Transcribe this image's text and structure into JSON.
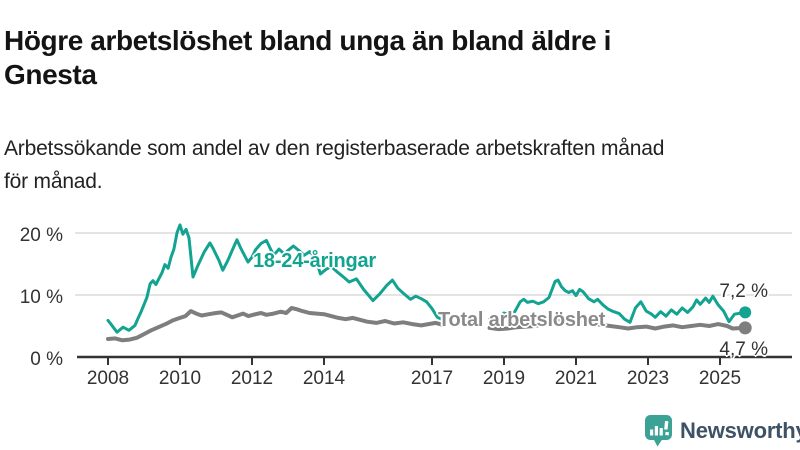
{
  "header": {
    "title": "Högre arbetslöshet bland unga än bland äldre i\nGnesta",
    "subtitle": "Arbetssökande som andel av den registerbaserade arbetskraften månad\nför månad."
  },
  "chart_data": {
    "type": "line",
    "title": "Högre arbetslöshet bland unga än bland äldre i Gnesta",
    "xlabel": "",
    "ylabel": "",
    "unit": "%",
    "ylim": [
      0,
      22
    ],
    "x_range_years": [
      2008,
      2025.8
    ],
    "grid": "horizontal-only",
    "legend_position": "inline-labels-on-lines",
    "note": "gap in both series between 2017 and mid-2018",
    "y_ticks": {
      "labels": [
        "0 %",
        "10 %",
        "20 %"
      ],
      "values": [
        0,
        10,
        20
      ]
    },
    "x_ticks": {
      "labels": [
        "2008",
        "2010",
        "2012",
        "2014",
        "2017",
        "2019",
        "2021",
        "2023",
        "2025"
      ],
      "years": [
        2008,
        2010,
        2012,
        2014,
        2017,
        2019,
        2021,
        2023,
        2025
      ]
    },
    "series": [
      {
        "name": "18-24-åringar",
        "color": "#12A391",
        "end_label": "7,2 %",
        "end_value": 7.2,
        "segments": [
          [
            [
              2008.0,
              5.9
            ],
            [
              2008.08,
              5.3
            ],
            [
              2008.25,
              4.0
            ],
            [
              2008.42,
              4.8
            ],
            [
              2008.58,
              4.3
            ],
            [
              2008.75,
              5.1
            ],
            [
              2008.83,
              6.2
            ],
            [
              2008.92,
              7.3
            ],
            [
              2009.08,
              9.6
            ],
            [
              2009.17,
              11.8
            ],
            [
              2009.25,
              12.3
            ],
            [
              2009.33,
              11.7
            ],
            [
              2009.5,
              13.6
            ],
            [
              2009.58,
              14.9
            ],
            [
              2009.67,
              14.3
            ],
            [
              2009.75,
              16.1
            ],
            [
              2009.83,
              17.4
            ],
            [
              2009.92,
              20.1
            ],
            [
              2010.0,
              21.3
            ],
            [
              2010.08,
              19.8
            ],
            [
              2010.17,
              20.6
            ],
            [
              2010.25,
              19.2
            ],
            [
              2010.36,
              12.9
            ],
            [
              2010.5,
              14.8
            ],
            [
              2010.67,
              16.9
            ],
            [
              2010.83,
              18.4
            ],
            [
              2010.92,
              17.5
            ],
            [
              2011.08,
              15.6
            ],
            [
              2011.19,
              14.0
            ],
            [
              2011.33,
              15.6
            ],
            [
              2011.45,
              17.2
            ],
            [
              2011.58,
              18.9
            ],
            [
              2011.7,
              17.4
            ],
            [
              2011.89,
              15.3
            ],
            [
              2012.0,
              16.1
            ],
            [
              2012.1,
              17.3
            ],
            [
              2012.25,
              18.3
            ],
            [
              2012.4,
              18.8
            ],
            [
              2012.5,
              17.6
            ],
            [
              2012.6,
              16.4
            ],
            [
              2012.75,
              17.4
            ],
            [
              2012.9,
              16.6
            ],
            [
              2013.0,
              17.2
            ],
            [
              2013.15,
              17.9
            ],
            [
              2013.3,
              17.2
            ],
            [
              2013.45,
              16.4
            ],
            [
              2013.6,
              17.0
            ],
            [
              2013.75,
              16.2
            ],
            [
              2013.9,
              13.4
            ],
            [
              2014.05,
              14.1
            ],
            [
              2014.2,
              14.6
            ],
            [
              2014.35,
              13.8
            ],
            [
              2014.5,
              13.1
            ],
            [
              2014.7,
              12.1
            ],
            [
              2014.9,
              12.6
            ],
            [
              2015.1,
              10.9
            ],
            [
              2015.36,
              9.1
            ],
            [
              2015.55,
              10.2
            ],
            [
              2015.75,
              11.6
            ],
            [
              2015.9,
              12.4
            ],
            [
              2016.05,
              11.1
            ],
            [
              2016.2,
              10.3
            ],
            [
              2016.4,
              9.3
            ],
            [
              2016.55,
              9.8
            ],
            [
              2016.7,
              9.4
            ],
            [
              2016.85,
              8.9
            ],
            [
              2017.0,
              7.8
            ],
            [
              2017.15,
              6.4
            ],
            [
              2017.3,
              6.0
            ]
          ],
          [
            [
              2018.6,
              6.3
            ],
            [
              2018.75,
              6.6
            ],
            [
              2018.9,
              6.4
            ],
            [
              2019.0,
              7.1
            ],
            [
              2019.15,
              6.8
            ],
            [
              2019.3,
              7.3
            ],
            [
              2019.45,
              8.9
            ],
            [
              2019.55,
              9.3
            ],
            [
              2019.65,
              8.8
            ],
            [
              2019.8,
              9.0
            ],
            [
              2019.95,
              8.6
            ],
            [
              2020.1,
              8.9
            ],
            [
              2020.25,
              9.6
            ],
            [
              2020.42,
              12.2
            ],
            [
              2020.5,
              12.4
            ],
            [
              2020.6,
              11.3
            ],
            [
              2020.7,
              10.7
            ],
            [
              2020.8,
              10.4
            ],
            [
              2020.9,
              10.7
            ],
            [
              2021.0,
              9.9
            ],
            [
              2021.1,
              10.9
            ],
            [
              2021.2,
              10.5
            ],
            [
              2021.35,
              9.4
            ],
            [
              2021.5,
              8.9
            ],
            [
              2021.6,
              9.3
            ],
            [
              2021.75,
              8.4
            ],
            [
              2021.9,
              7.7
            ],
            [
              2022.05,
              7.3
            ],
            [
              2022.2,
              7.0
            ],
            [
              2022.35,
              6.1
            ],
            [
              2022.5,
              5.6
            ],
            [
              2022.65,
              7.9
            ],
            [
              2022.8,
              8.9
            ],
            [
              2022.95,
              7.4
            ],
            [
              2023.1,
              6.9
            ],
            [
              2023.2,
              6.4
            ],
            [
              2023.35,
              7.3
            ],
            [
              2023.5,
              6.6
            ],
            [
              2023.65,
              7.6
            ],
            [
              2023.8,
              6.9
            ],
            [
              2023.95,
              7.9
            ],
            [
              2024.1,
              7.2
            ],
            [
              2024.25,
              8.1
            ],
            [
              2024.35,
              9.2
            ],
            [
              2024.45,
              8.5
            ],
            [
              2024.6,
              9.5
            ],
            [
              2024.7,
              8.8
            ],
            [
              2024.8,
              9.8
            ],
            [
              2024.95,
              8.4
            ],
            [
              2025.1,
              7.4
            ],
            [
              2025.25,
              5.7
            ],
            [
              2025.4,
              6.9
            ],
            [
              2025.7,
              7.2
            ]
          ]
        ]
      },
      {
        "name": "Total arbetslöshet",
        "color": "#7E7E7E",
        "label_color": "#8A8A8A",
        "end_label": "4,7 %",
        "end_value": 4.7,
        "segments": [
          [
            [
              2008.0,
              2.9
            ],
            [
              2008.2,
              3.0
            ],
            [
              2008.4,
              2.7
            ],
            [
              2008.6,
              2.8
            ],
            [
              2008.8,
              3.1
            ],
            [
              2009.0,
              3.7
            ],
            [
              2009.2,
              4.3
            ],
            [
              2009.4,
              4.8
            ],
            [
              2009.6,
              5.3
            ],
            [
              2009.8,
              5.9
            ],
            [
              2010.0,
              6.3
            ],
            [
              2010.15,
              6.6
            ],
            [
              2010.3,
              7.4
            ],
            [
              2010.45,
              7.0
            ],
            [
              2010.6,
              6.7
            ],
            [
              2010.8,
              6.9
            ],
            [
              2011.0,
              7.1
            ],
            [
              2011.15,
              7.2
            ],
            [
              2011.3,
              6.8
            ],
            [
              2011.45,
              6.4
            ],
            [
              2011.6,
              6.7
            ],
            [
              2011.75,
              7.0
            ],
            [
              2011.9,
              6.6
            ],
            [
              2012.1,
              6.9
            ],
            [
              2012.25,
              7.1
            ],
            [
              2012.4,
              6.8
            ],
            [
              2012.6,
              7.0
            ],
            [
              2012.8,
              7.3
            ],
            [
              2012.95,
              7.1
            ],
            [
              2013.1,
              7.9
            ],
            [
              2013.25,
              7.7
            ],
            [
              2013.4,
              7.4
            ],
            [
              2013.6,
              7.1
            ],
            [
              2013.8,
              7.0
            ],
            [
              2014.0,
              6.9
            ],
            [
              2014.2,
              6.6
            ],
            [
              2014.4,
              6.3
            ],
            [
              2014.6,
              6.1
            ],
            [
              2014.8,
              6.3
            ],
            [
              2015.0,
              6.0
            ],
            [
              2015.2,
              5.7
            ],
            [
              2015.45,
              5.5
            ],
            [
              2015.7,
              5.8
            ],
            [
              2015.95,
              5.4
            ],
            [
              2016.2,
              5.6
            ],
            [
              2016.45,
              5.3
            ],
            [
              2016.7,
              5.1
            ],
            [
              2016.9,
              5.3
            ],
            [
              2017.1,
              5.5
            ],
            [
              2017.3,
              5.2
            ]
          ],
          [
            [
              2018.6,
              4.7
            ],
            [
              2018.85,
              4.5
            ],
            [
              2019.1,
              4.6
            ],
            [
              2019.35,
              4.8
            ],
            [
              2019.6,
              4.9
            ],
            [
              2019.85,
              5.0
            ],
            [
              2020.1,
              5.3
            ],
            [
              2020.35,
              5.9
            ],
            [
              2020.5,
              6.1
            ],
            [
              2020.7,
              5.9
            ],
            [
              2020.95,
              5.8
            ],
            [
              2021.2,
              5.6
            ],
            [
              2021.45,
              5.4
            ],
            [
              2021.7,
              5.2
            ],
            [
              2021.95,
              5.0
            ],
            [
              2022.2,
              4.8
            ],
            [
              2022.45,
              4.6
            ],
            [
              2022.7,
              4.8
            ],
            [
              2022.95,
              4.9
            ],
            [
              2023.2,
              4.6
            ],
            [
              2023.45,
              4.9
            ],
            [
              2023.7,
              5.1
            ],
            [
              2023.95,
              4.8
            ],
            [
              2024.2,
              5.0
            ],
            [
              2024.45,
              5.2
            ],
            [
              2024.7,
              5.0
            ],
            [
              2024.95,
              5.3
            ],
            [
              2025.2,
              5.0
            ],
            [
              2025.35,
              4.6
            ],
            [
              2025.7,
              4.7
            ]
          ]
        ]
      }
    ],
    "colors": {
      "accent_teal": "#12A391",
      "neutral_gray": "#7E7E7E",
      "grid": "#DBDBDB",
      "axis": "#333333"
    }
  },
  "branding": {
    "name": "Newsworthy",
    "icon": "newsworthy-logo-icon",
    "icon_color": "#3BA295",
    "text_color": "#3E5266"
  }
}
